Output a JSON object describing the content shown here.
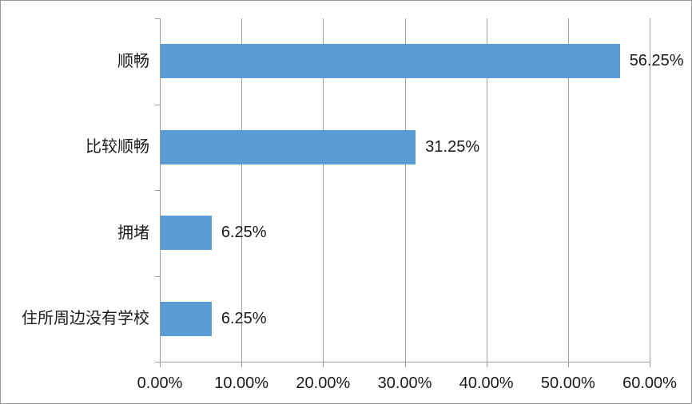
{
  "chart_data": {
    "type": "bar",
    "orientation": "horizontal",
    "title": "",
    "xlabel": "",
    "ylabel": "",
    "categories": [
      "顺畅",
      "比较顺畅",
      "拥堵",
      "住所周边没有学校"
    ],
    "values": [
      56.25,
      31.25,
      6.25,
      6.25
    ],
    "data_labels": [
      "56.25%",
      "31.25%",
      "6.25%",
      "6.25%"
    ],
    "x_tick_labels": [
      "0.00%",
      "10.00%",
      "20.00%",
      "30.00%",
      "40.00%",
      "50.00%",
      "60.00%"
    ],
    "x_tick_values": [
      0,
      10,
      20,
      30,
      40,
      50,
      60
    ],
    "xlim": [
      0,
      60
    ],
    "grid": true,
    "legend": false,
    "bar_color": "#5B9BD5",
    "gridline_color": "#a0a0a0",
    "axis_color": "#9a9a9a",
    "text_color": "#1a1a1a",
    "background_color": "#ffffff",
    "border_color": "#999999"
  }
}
